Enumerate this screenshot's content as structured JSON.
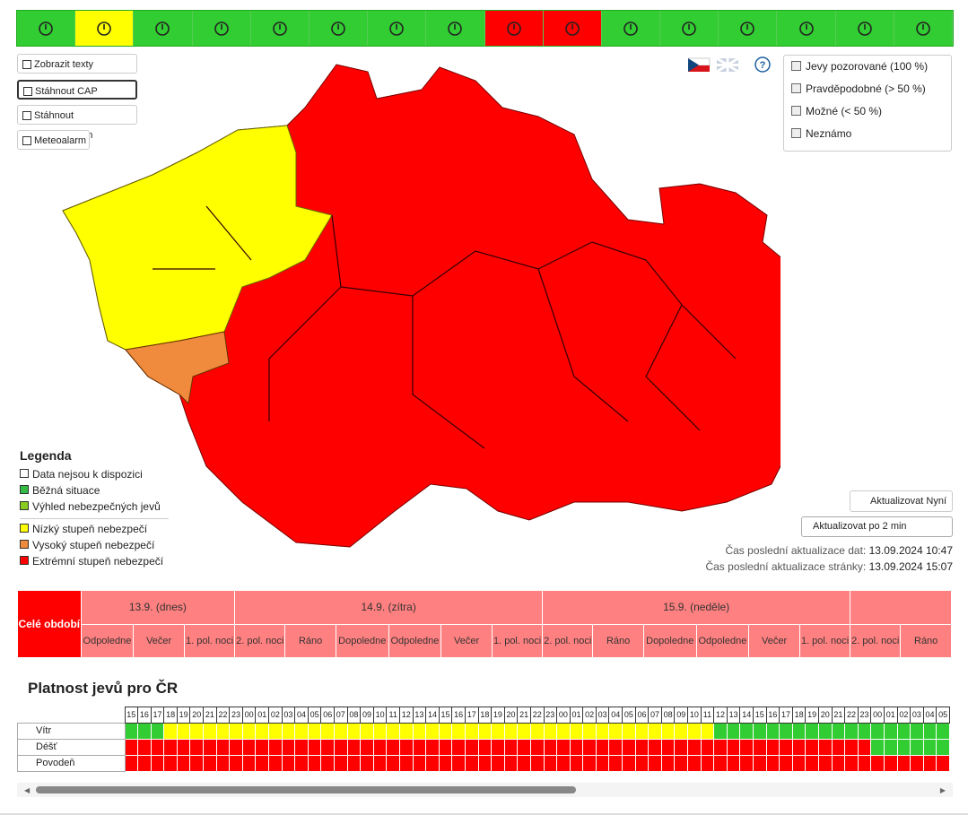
{
  "toolbar": [
    "limegreen",
    "yellow",
    "limegreen",
    "limegreen",
    "limegreen",
    "limegreen",
    "limegreen",
    "limegreen",
    "red",
    "red",
    "limegreen",
    "limegreen",
    "limegreen",
    "limegreen",
    "limegreen",
    "limegreen"
  ],
  "buttons": [
    "Zobrazit texty",
    "Stáhnout CAP",
    "Stáhnout audiozáznam",
    "Meteoalarm"
  ],
  "help": "?",
  "filters": [
    "Jevy pozorované (100 %)",
    "Pravděpodobné (> 50 %)",
    "Možné (< 50 %)",
    "Neznámo"
  ],
  "legend": {
    "title": "Legenda",
    "items": [
      {
        "label": "Data nejsou k dispozici",
        "color": "#ffffff"
      },
      {
        "label": "Běžná situace",
        "color": "#33bb44"
      },
      {
        "label": "Výhled nebezpečných jevů",
        "color": "#88cc22"
      },
      {
        "label": "Nízký stupeň nebezpečí",
        "color": "#ffff00"
      },
      {
        "label": "Vysoký stupeň nebezpečí",
        "color": "#f08a3c"
      },
      {
        "label": "Extrémní stupeň nebezpečí",
        "color": "#ff0000"
      }
    ]
  },
  "update": {
    "button": "Aktualizovat Nyní",
    "select": "Aktualizovat po 2 min",
    "data_label": "Čas poslední aktualizace dat:",
    "data_time": "13.09.2024 10:47",
    "page_label": "Čas poslední aktualizace stránky:",
    "page_time": "13.09.2024 15:07"
  },
  "periods": {
    "whole": "Celé období",
    "days": [
      {
        "label": "13.9. (dnes)",
        "parts": [
          "Odpoledne",
          "Večer",
          "1. pol. noci"
        ]
      },
      {
        "label": "14.9. (zítra)",
        "parts": [
          "2. pol. noci",
          "Ráno",
          "Dopoledne",
          "Odpoledne",
          "Večer",
          "1. pol. noci"
        ]
      },
      {
        "label": "15.9. (neděle)",
        "parts": [
          "2. pol. noci",
          "Ráno",
          "Dopoledne",
          "Odpoledne",
          "Večer",
          "1. pol. noci"
        ]
      },
      {
        "label": null,
        "parts": [
          "2. pol. noci",
          "Ráno"
        ]
      }
    ]
  },
  "validity": {
    "title": "Platnost jevů pro ČR",
    "hours": [
      "15",
      "16",
      "17",
      "18",
      "19",
      "20",
      "21",
      "22",
      "23",
      "00",
      "01",
      "02",
      "03",
      "04",
      "05",
      "06",
      "07",
      "08",
      "09",
      "10",
      "11",
      "12",
      "13",
      "14",
      "15",
      "16",
      "17",
      "18",
      "19",
      "20",
      "21",
      "22",
      "23",
      "00",
      "01",
      "02",
      "03",
      "04",
      "05",
      "06",
      "07",
      "08",
      "09",
      "10",
      "11",
      "12",
      "13",
      "14",
      "15",
      "16",
      "17",
      "18",
      "19",
      "20",
      "21",
      "22",
      "23",
      "00",
      "01",
      "02",
      "03",
      "04",
      "05"
    ],
    "rows": [
      {
        "name": "Vítr",
        "cells": [
          "limegreen",
          "limegreen",
          "limegreen",
          "yellow",
          "yellow",
          "yellow",
          "yellow",
          "yellow",
          "yellow",
          "yellow",
          "yellow",
          "yellow",
          "yellow",
          "yellow",
          "yellow",
          "yellow",
          "yellow",
          "yellow",
          "yellow",
          "yellow",
          "yellow",
          "yellow",
          "yellow",
          "yellow",
          "yellow",
          "yellow",
          "yellow",
          "yellow",
          "yellow",
          "yellow",
          "yellow",
          "yellow",
          "yellow",
          "yellow",
          "yellow",
          "yellow",
          "yellow",
          "yellow",
          "yellow",
          "yellow",
          "yellow",
          "yellow",
          "yellow",
          "yellow",
          "yellow",
          "limegreen",
          "limegreen",
          "limegreen",
          "limegreen",
          "limegreen",
          "limegreen",
          "limegreen",
          "limegreen",
          "limegreen",
          "limegreen",
          "limegreen",
          "limegreen",
          "limegreen",
          "limegreen",
          "limegreen",
          "limegreen",
          "limegreen",
          "limegreen"
        ]
      },
      {
        "name": "Déšť",
        "cells": [
          "red",
          "red",
          "red",
          "red",
          "red",
          "red",
          "red",
          "red",
          "red",
          "red",
          "red",
          "red",
          "red",
          "red",
          "red",
          "red",
          "red",
          "red",
          "red",
          "red",
          "red",
          "red",
          "red",
          "red",
          "red",
          "red",
          "red",
          "red",
          "red",
          "red",
          "red",
          "red",
          "red",
          "red",
          "red",
          "red",
          "red",
          "red",
          "red",
          "red",
          "red",
          "red",
          "red",
          "red",
          "red",
          "red",
          "red",
          "red",
          "red",
          "red",
          "red",
          "red",
          "red",
          "red",
          "red",
          "red",
          "red",
          "limegreen",
          "limegreen",
          "limegreen",
          "limegreen",
          "limegreen",
          "limegreen"
        ]
      },
      {
        "name": "Povodeň",
        "cells": [
          "red",
          "red",
          "red",
          "red",
          "red",
          "red",
          "red",
          "red",
          "red",
          "red",
          "red",
          "red",
          "red",
          "red",
          "red",
          "red",
          "red",
          "red",
          "red",
          "red",
          "red",
          "red",
          "red",
          "red",
          "red",
          "red",
          "red",
          "red",
          "red",
          "red",
          "red",
          "red",
          "red",
          "red",
          "red",
          "red",
          "red",
          "red",
          "red",
          "red",
          "red",
          "red",
          "red",
          "red",
          "red",
          "red",
          "red",
          "red",
          "red",
          "red",
          "red",
          "red",
          "red",
          "red",
          "red",
          "red",
          "red",
          "red",
          "red",
          "red",
          "red",
          "red",
          "red"
        ]
      }
    ]
  }
}
